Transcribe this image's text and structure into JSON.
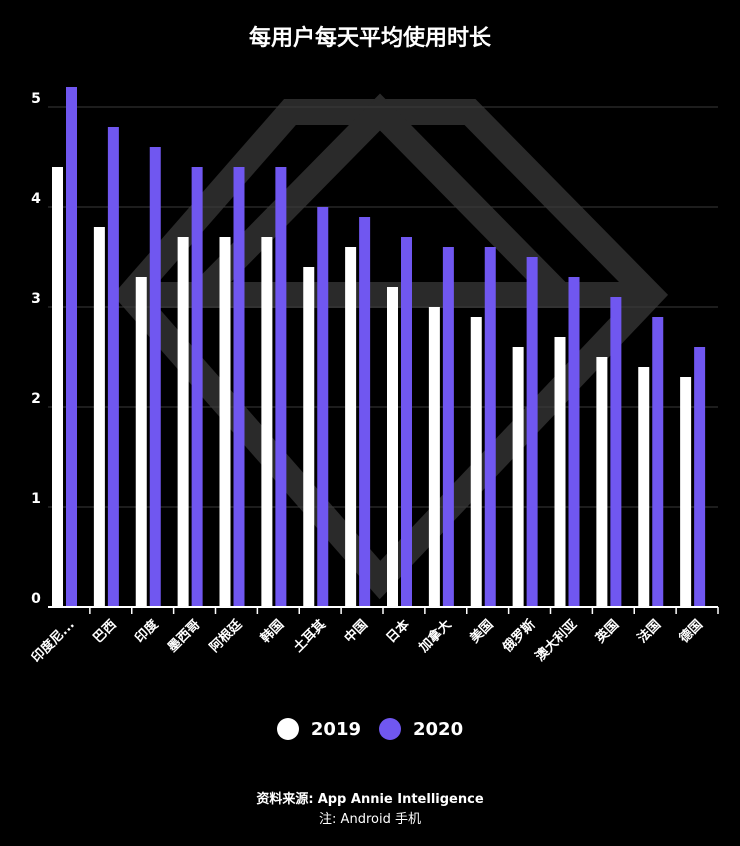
{
  "chart_data": {
    "type": "bar",
    "title": "每用户每天平均使用时长",
    "categories": [
      "印度尼...",
      "巴西",
      "印度",
      "墨西哥",
      "阿根廷",
      "韩国",
      "土耳其",
      "中国",
      "日本",
      "加拿大",
      "美国",
      "俄罗斯",
      "澳大利亚",
      "英国",
      "法国",
      "德国"
    ],
    "series": [
      {
        "name": "2019",
        "color": "#ffffff",
        "values": [
          4.4,
          3.8,
          3.3,
          3.7,
          3.7,
          3.7,
          3.4,
          3.6,
          3.2,
          3.0,
          2.9,
          2.6,
          2.7,
          2.5,
          2.4,
          2.3
        ]
      },
      {
        "name": "2020",
        "color": "#7057f0",
        "values": [
          5.2,
          4.8,
          4.6,
          4.4,
          4.4,
          4.4,
          4.0,
          3.9,
          3.7,
          3.6,
          3.6,
          3.5,
          3.3,
          3.1,
          2.9,
          2.6
        ]
      }
    ],
    "ylim": [
      0,
      5
    ],
    "yticks": [
      "0",
      "1",
      "2",
      "3",
      "4",
      "5"
    ],
    "grid": true,
    "legend_position": "bottom-center"
  },
  "source": {
    "label": "资料来源:",
    "value": "App Annie Intelligence",
    "note": "注: Android 手机"
  }
}
